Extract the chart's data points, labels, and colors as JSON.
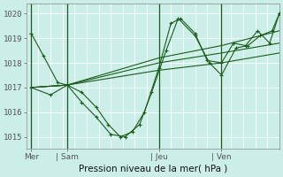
{
  "xlabel": "Pression niveau de la mer( hPa )",
  "bg_color": "#cceee8",
  "line_color": "#1a5c1a",
  "grid_color": "#b8ddd8",
  "ylim": [
    1014.5,
    1020.4
  ],
  "xlim": [
    0,
    10.5
  ],
  "day_labels": [
    "Mer",
    "| Sam",
    "| Jeu",
    "| Ven"
  ],
  "day_positions": [
    0.2,
    1.7,
    5.5,
    8.1
  ],
  "yticks": [
    1015,
    1016,
    1017,
    1018,
    1019,
    1020
  ],
  "vline_positions": [
    0.2,
    1.7,
    5.5,
    8.1
  ],
  "line1_x": [
    0.2,
    0.7,
    1.3,
    1.7,
    2.3,
    2.9,
    3.4,
    3.9,
    4.4,
    4.9,
    5.5,
    6.0,
    6.4,
    7.0,
    7.5,
    8.1,
    8.6,
    9.1,
    9.6,
    10.1,
    10.5
  ],
  "line1_y": [
    1019.2,
    1018.3,
    1017.2,
    1017.1,
    1016.8,
    1016.2,
    1015.5,
    1015.0,
    1015.2,
    1016.0,
    1017.8,
    1019.6,
    1019.8,
    1019.2,
    1018.1,
    1018.0,
    1018.8,
    1018.7,
    1019.3,
    1018.8,
    1020.0
  ],
  "line2_x": [
    0.2,
    1.0,
    1.7,
    2.3,
    2.9,
    3.5,
    4.1,
    4.7,
    5.2,
    5.8,
    6.3,
    7.0,
    7.6,
    8.1,
    8.7,
    9.2,
    9.7,
    10.2,
    10.5
  ],
  "line2_y": [
    1017.0,
    1016.7,
    1017.1,
    1016.4,
    1015.8,
    1015.1,
    1015.0,
    1015.5,
    1016.8,
    1018.5,
    1019.8,
    1019.1,
    1018.0,
    1017.5,
    1018.6,
    1018.7,
    1019.1,
    1019.3,
    1020.0
  ],
  "smooth1_x": [
    0.2,
    1.7,
    5.5,
    8.1,
    10.5
  ],
  "smooth1_y": [
    1017.0,
    1017.1,
    1018.0,
    1018.4,
    1018.8
  ],
  "smooth2_x": [
    0.2,
    1.7,
    5.5,
    8.1,
    10.5
  ],
  "smooth2_y": [
    1017.0,
    1017.1,
    1018.2,
    1018.7,
    1019.3
  ],
  "smooth3_x": [
    0.2,
    1.7,
    5.5,
    8.1,
    10.5
  ],
  "smooth3_y": [
    1017.0,
    1017.1,
    1017.7,
    1018.0,
    1018.4
  ]
}
